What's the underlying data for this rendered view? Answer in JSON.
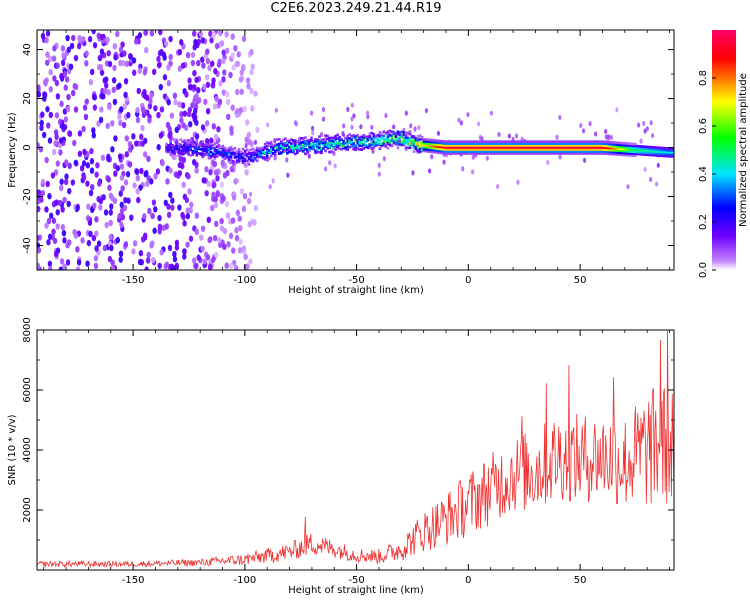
{
  "title": "C2E6.2023.249.21.44.R19",
  "chart_data": [
    {
      "type": "heatmap",
      "title": "C2E6.2023.249.21.44.R19",
      "xlabel": "Height of straight line (km)",
      "ylabel": "Frequency (Hz)",
      "xlim": [
        -193,
        92
      ],
      "ylim": [
        -50,
        48
      ],
      "x_ticks": [
        -150,
        -100,
        -50,
        0,
        50
      ],
      "y_ticks": [
        -40,
        -20,
        0,
        20,
        40
      ],
      "colorbar": {
        "label": "Normalized spectral amplitude",
        "range": [
          0,
          1
        ],
        "ticks": [
          0.0,
          0.2,
          0.4,
          0.6,
          0.8
        ],
        "colors": [
          "#ffffff",
          "#9a00ff",
          "#0000ff",
          "#00e5ff",
          "#00ff00",
          "#ffff00",
          "#ff0000",
          "#ff0066"
        ]
      },
      "ridge": {
        "description_points": [
          {
            "x": -130,
            "y": 0,
            "amp": 0.25
          },
          {
            "x": -115,
            "y": -1,
            "amp": 0.35
          },
          {
            "x": -100,
            "y": -4,
            "amp": 0.3
          },
          {
            "x": -85,
            "y": 0,
            "amp": 0.45
          },
          {
            "x": -70,
            "y": 1,
            "amp": 0.5
          },
          {
            "x": -55,
            "y": 2,
            "amp": 0.5
          },
          {
            "x": -40,
            "y": 3,
            "amp": 0.5
          },
          {
            "x": -30,
            "y": 4,
            "amp": 0.6
          },
          {
            "x": -20,
            "y": 1,
            "amp": 0.7
          },
          {
            "x": -10,
            "y": 0,
            "amp": 0.95
          },
          {
            "x": 20,
            "y": 0,
            "amp": 0.95
          },
          {
            "x": 60,
            "y": 0,
            "amp": 0.95
          },
          {
            "x": 75,
            "y": -1,
            "amp": 0.5
          },
          {
            "x": 90,
            "y": -2,
            "amp": 0.4
          }
        ],
        "noise_region_x": [
          -193,
          -100
        ]
      }
    },
    {
      "type": "line",
      "xlabel": "Height of straight line (km)",
      "ylabel": "SNR (10 * v/v)",
      "xlim": [
        -193,
        92
      ],
      "ylim": [
        0,
        8000
      ],
      "x_ticks": [
        -150,
        -100,
        -50,
        0,
        50
      ],
      "y_ticks": [
        2000,
        4000,
        6000,
        8000
      ],
      "color": "#ee3333",
      "envelope": {
        "x": [
          -193,
          -150,
          -120,
          -100,
          -80,
          -70,
          -60,
          -50,
          -40,
          -30,
          -20,
          -10,
          0,
          10,
          20,
          30,
          40,
          50,
          60,
          70,
          80,
          92
        ],
        "mean": [
          200,
          200,
          250,
          350,
          600,
          900,
          700,
          500,
          450,
          700,
          1300,
          1700,
          2200,
          2700,
          3200,
          3300,
          3800,
          3700,
          3800,
          3600,
          4000,
          4300
        ],
        "spread": [
          100,
          100,
          120,
          200,
          300,
          400,
          300,
          250,
          250,
          400,
          700,
          900,
          1100,
          1200,
          1300,
          1400,
          1500,
          1500,
          1500,
          1600,
          2000,
          2200
        ]
      },
      "peaks": [
        {
          "x": 89,
          "y": 7950
        },
        {
          "x": 86,
          "y": 7650
        },
        {
          "x": 45,
          "y": 6800
        },
        {
          "x": 65,
          "y": 6400
        },
        {
          "x": 35,
          "y": 6200
        },
        {
          "x": 24,
          "y": 5100
        },
        {
          "x": -73,
          "y": 1750
        }
      ]
    }
  ]
}
